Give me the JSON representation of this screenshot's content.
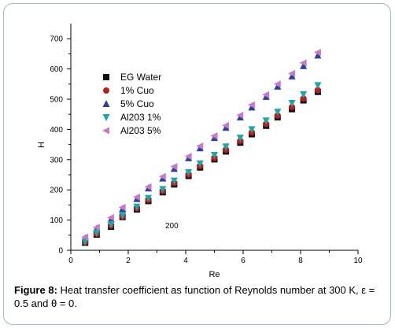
{
  "chart_data": {
    "type": "scatter",
    "xlabel": "Re",
    "ylabel": "H",
    "xlim": [
      0,
      10
    ],
    "ylim": [
      0,
      750
    ],
    "xticks": [
      0,
      2,
      4,
      6,
      8,
      10
    ],
    "yticks": [
      0,
      100,
      200,
      300,
      400,
      500,
      600,
      700
    ],
    "grid": false,
    "legend_position": "upper-left",
    "annotation": "200",
    "series": [
      {
        "name": "EG Water",
        "marker": "square",
        "color": "#111111",
        "x": [
          0.5,
          0.9,
          1.4,
          1.8,
          2.3,
          2.7,
          3.2,
          3.6,
          4.1,
          4.5,
          5.0,
          5.4,
          5.9,
          6.3,
          6.8,
          7.2,
          7.7,
          8.1,
          8.6
        ],
        "y": [
          25,
          52,
          78,
          110,
          135,
          163,
          192,
          218,
          246,
          274,
          301,
          327,
          356,
          384,
          412,
          440,
          467,
          496,
          524
        ]
      },
      {
        "name": "1% Cuo",
        "marker": "circle",
        "color": "#b22222",
        "x": [
          0.5,
          0.9,
          1.4,
          1.8,
          2.3,
          2.7,
          3.2,
          3.6,
          4.1,
          4.5,
          5.0,
          5.4,
          5.9,
          6.3,
          6.8,
          7.2,
          7.7,
          8.1,
          8.6
        ],
        "y": [
          27,
          55,
          82,
          112,
          139,
          167,
          196,
          223,
          251,
          279,
          306,
          333,
          362,
          390,
          418,
          446,
          474,
          502,
          530
        ]
      },
      {
        "name": "5% Cuo",
        "marker": "triangle",
        "color": "#2f3fa0",
        "x": [
          0.5,
          0.9,
          1.4,
          1.8,
          2.3,
          2.7,
          3.2,
          3.6,
          4.1,
          4.5,
          5.0,
          5.4,
          5.9,
          6.3,
          6.8,
          7.2,
          7.7,
          8.1,
          8.6
        ],
        "y": [
          40,
          72,
          103,
          137,
          170,
          205,
          238,
          270,
          305,
          338,
          372,
          406,
          440,
          473,
          508,
          542,
          576,
          610,
          645
        ]
      },
      {
        "name": "Al203 1%",
        "marker": "triangle-down",
        "color": "#1fa6a6",
        "x": [
          0.5,
          0.9,
          1.4,
          1.8,
          2.3,
          2.7,
          3.2,
          3.6,
          4.1,
          4.5,
          5.0,
          5.4,
          5.9,
          6.3,
          6.8,
          7.2,
          7.7,
          8.1,
          8.6
        ],
        "y": [
          29,
          58,
          86,
          116,
          144,
          173,
          202,
          230,
          258,
          287,
          315,
          343,
          372,
          400,
          429,
          458,
          487,
          516,
          546
        ]
      },
      {
        "name": "Al203 5%",
        "marker": "triangle-left",
        "color": "#c77bc7",
        "x": [
          0.5,
          0.9,
          1.4,
          1.8,
          2.3,
          2.7,
          3.2,
          3.6,
          4.1,
          4.5,
          5.0,
          5.4,
          5.9,
          6.3,
          6.8,
          7.2,
          7.7,
          8.1,
          8.6
        ],
        "y": [
          44,
          76,
          108,
          142,
          176,
          210,
          244,
          277,
          311,
          345,
          379,
          413,
          447,
          481,
          515,
          550,
          585,
          620,
          655
        ]
      }
    ]
  },
  "caption": {
    "label": "Figure 8:",
    "text": " Heat transfer coefficient as function of Reynolds number at 300 K, ε = 0.5 and θ = 0."
  }
}
